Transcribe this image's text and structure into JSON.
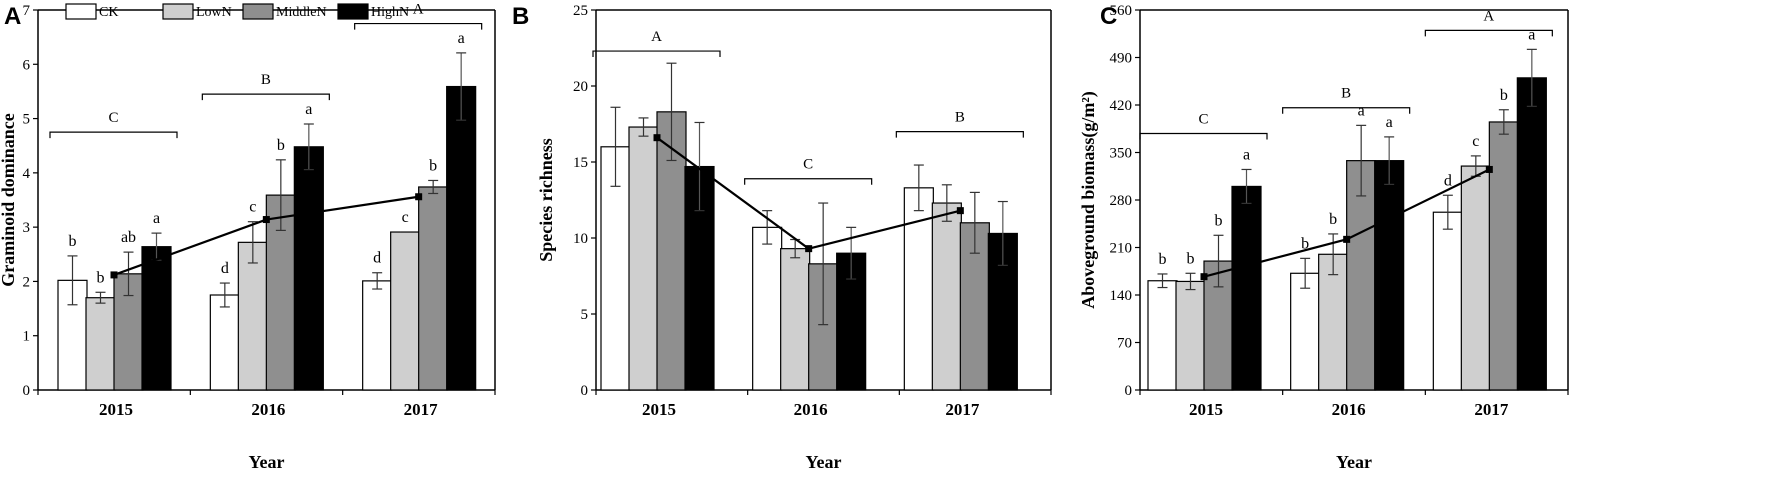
{
  "chart_data": [
    {
      "panel": "A",
      "type": "bar",
      "xlabel": "Year",
      "ylabel": "Graminoid dominance",
      "ylim": [
        0,
        7
      ],
      "yticks": [
        0,
        1,
        2,
        3,
        4,
        5,
        6,
        7
      ],
      "categories": [
        "2015",
        "2016",
        "2017"
      ],
      "series": [
        {
          "name": "CK",
          "values": [
            2.02,
            1.75,
            2.01
          ],
          "errors": [
            0.45,
            0.22,
            0.15
          ],
          "sig": [
            "b",
            "d",
            "d"
          ]
        },
        {
          "name": "LowN",
          "values": [
            1.7,
            2.72,
            2.91
          ],
          "errors": [
            0.1,
            0.38,
            0.0
          ],
          "sig": [
            "b",
            "c",
            "c"
          ]
        },
        {
          "name": "MiddleN",
          "values": [
            2.14,
            3.59,
            3.74
          ],
          "errors": [
            0.4,
            0.65,
            0.12
          ],
          "sig": [
            "ab",
            "b",
            "b"
          ]
        },
        {
          "name": "HighN",
          "values": [
            2.64,
            4.48,
            5.59
          ],
          "errors": [
            0.25,
            0.42,
            0.62
          ],
          "sig": [
            "a",
            "a",
            "a"
          ]
        }
      ],
      "trend": [
        2.12,
        3.14,
        3.56
      ],
      "year_letters": [
        "C",
        "B",
        "A"
      ],
      "year_letter_levels": [
        4.75,
        5.45,
        6.75
      ],
      "legend": "top-left"
    },
    {
      "panel": "B",
      "type": "bar",
      "xlabel": "Year",
      "ylabel": "Species richness",
      "ylim": [
        0,
        25
      ],
      "yticks": [
        0,
        5,
        10,
        15,
        20,
        25
      ],
      "categories": [
        "2015",
        "2016",
        "2017"
      ],
      "series": [
        {
          "name": "CK",
          "values": [
            16.0,
            10.7,
            13.3
          ],
          "errors": [
            2.6,
            1.1,
            1.5
          ],
          "sig": [
            "",
            "",
            ""
          ]
        },
        {
          "name": "LowN",
          "values": [
            17.3,
            9.3,
            12.3
          ],
          "errors": [
            0.6,
            0.6,
            1.2
          ],
          "sig": [
            "",
            "",
            ""
          ]
        },
        {
          "name": "MiddleN",
          "values": [
            18.3,
            8.3,
            11.0
          ],
          "errors": [
            3.2,
            4.0,
            2.0
          ],
          "sig": [
            "",
            "",
            ""
          ]
        },
        {
          "name": "HighN",
          "values": [
            14.7,
            9.0,
            10.3
          ],
          "errors": [
            2.9,
            1.7,
            2.1
          ],
          "sig": [
            "",
            "",
            ""
          ]
        }
      ],
      "trend": [
        16.6,
        9.3,
        11.8
      ],
      "year_letters": [
        "A",
        "C",
        "B"
      ],
      "year_letter_levels": [
        22.3,
        13.9,
        17.0
      ]
    },
    {
      "panel": "C",
      "type": "bar",
      "xlabel": "Year",
      "ylabel": "Aboveground biomass(g/m²)",
      "ylim": [
        0,
        560
      ],
      "yticks": [
        0,
        70,
        140,
        210,
        280,
        350,
        420,
        490,
        560
      ],
      "categories": [
        "2015",
        "2016",
        "2017"
      ],
      "series": [
        {
          "name": "CK",
          "values": [
            161,
            172,
            262
          ],
          "errors": [
            10,
            22,
            25
          ],
          "sig": [
            "b",
            "b",
            "d"
          ]
        },
        {
          "name": "LowN",
          "values": [
            160,
            200,
            330
          ],
          "errors": [
            12,
            30,
            15
          ],
          "sig": [
            "b",
            "b",
            "c"
          ]
        },
        {
          "name": "MiddleN",
          "values": [
            190,
            338,
            395
          ],
          "errors": [
            38,
            52,
            18
          ],
          "sig": [
            "b",
            "a",
            "b"
          ]
        },
        {
          "name": "HighN",
          "values": [
            300,
            338,
            460
          ],
          "errors": [
            25,
            35,
            42
          ],
          "sig": [
            "a",
            "a",
            "a"
          ]
        }
      ],
      "trend": [
        167,
        222,
        325
      ],
      "year_letters": [
        "C",
        "B",
        "A"
      ],
      "year_letter_levels": [
        378,
        416,
        530
      ]
    }
  ],
  "legend_colors": {
    "CK": "#ffffff",
    "LowN": "#cfcfcf",
    "MiddleN": "#8f8f8f",
    "HighN": "#000000"
  }
}
